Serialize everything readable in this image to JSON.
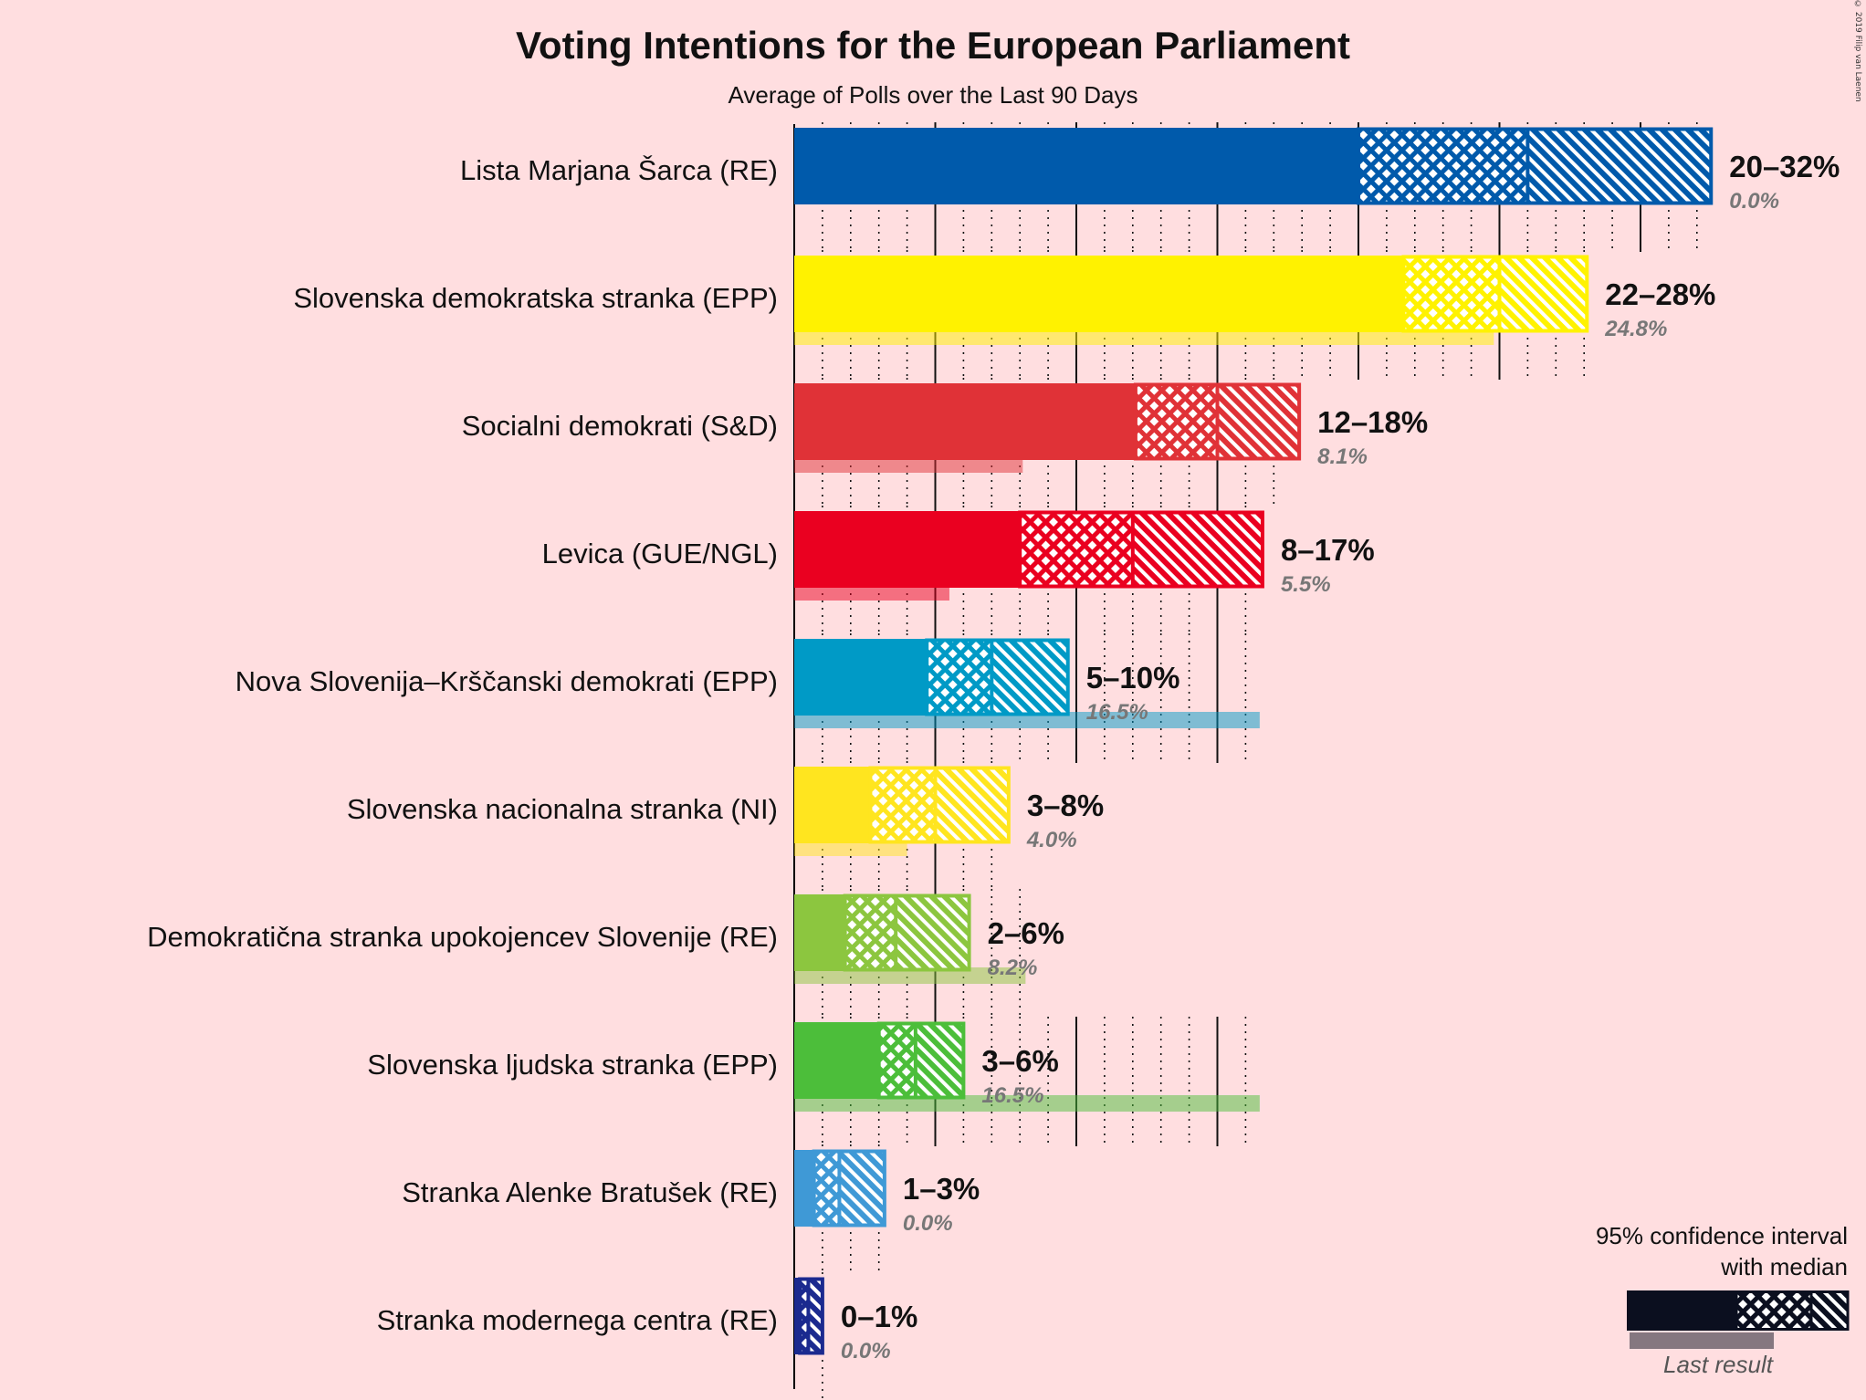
{
  "chart_data": {
    "type": "bar",
    "title": "Voting Intentions for the European Parliament",
    "subtitle": "Average of Polls over the Last 90 Days",
    "copyright": "© 2019 Filip van Laenen",
    "unit": "%",
    "parties": [
      {
        "name": "Lista Marjana Šarca (RE)",
        "color": "#005aab",
        "ci80_low": 20,
        "median": 26,
        "ci80_high": 26.5,
        "ci95_high": 32.5,
        "range_label": "20–32%",
        "last_result": 0.0,
        "last_label": "0.0%"
      },
      {
        "name": "Slovenska demokratska stranka (EPP)",
        "color": "#fff200",
        "ci80_low": 21.6,
        "median": 25,
        "ci80_high": 25,
        "ci95_high": 28.1,
        "range_label": "22–28%",
        "last_result": 24.8,
        "last_label": "24.8%"
      },
      {
        "name": "Socialni demokrati (S&D)",
        "color": "#e03237",
        "ci80_low": 12.1,
        "median": 15,
        "ci80_high": 15,
        "ci95_high": 17.9,
        "range_label": "12–18%",
        "last_result": 8.1,
        "last_label": "8.1%"
      },
      {
        "name": "Levica (GUE/NGL)",
        "color": "#ea0020",
        "ci80_low": 8,
        "median": 12,
        "ci80_high": 12,
        "ci95_high": 16.6,
        "range_label": "8–17%",
        "last_result": 5.5,
        "last_label": "5.5%"
      },
      {
        "name": "Nova Slovenija–Krščanski demokrati (EPP)",
        "color": "#009ac6",
        "ci80_low": 4.7,
        "median": 7,
        "ci80_high": 7,
        "ci95_high": 9.7,
        "range_label": "5–10%",
        "last_result": 16.5,
        "last_label": "16.5%"
      },
      {
        "name": "Slovenska nacionalna stranka (NI)",
        "color": "#ffe51f",
        "ci80_low": 2.7,
        "median": 5,
        "ci80_high": 5,
        "ci95_high": 7.6,
        "range_label": "3–8%",
        "last_result": 4.0,
        "last_label": "4.0%"
      },
      {
        "name": "Demokratična stranka upokojencev Slovenije (RE)",
        "color": "#8cc63f",
        "ci80_low": 1.8,
        "median": 3.6,
        "ci80_high": 3.6,
        "ci95_high": 6.2,
        "range_label": "2–6%",
        "last_result": 8.2,
        "last_label": "8.2%"
      },
      {
        "name": "Slovenska ljudska stranka (EPP)",
        "color": "#4cbe3a",
        "ci80_low": 3,
        "median": 4.3,
        "ci80_high": 4.3,
        "ci95_high": 6,
        "range_label": "3–6%",
        "last_result": 16.5,
        "last_label": "16.5%"
      },
      {
        "name": "Stranka Alenke Bratušek (RE)",
        "color": "#3f99d6",
        "ci80_low": 0.7,
        "median": 1.6,
        "ci80_high": 1.6,
        "ci95_high": 3.2,
        "range_label": "1–3%",
        "last_result": 0.0,
        "last_label": "0.0%"
      },
      {
        "name": "Stranka modernega centra (RE)",
        "color": "#1b2a8f",
        "ci80_low": 0.2,
        "median": 0.5,
        "ci80_high": 0.5,
        "ci95_high": 1.0,
        "range_label": "0–1%",
        "last_result": 0.0,
        "last_label": "0.0%"
      }
    ],
    "xlim": [
      0,
      32.5
    ],
    "legend": {
      "title_line1": "95% confidence interval",
      "title_line2": "with median",
      "last_result_label": "Last result",
      "placement": "bottom-right"
    }
  }
}
